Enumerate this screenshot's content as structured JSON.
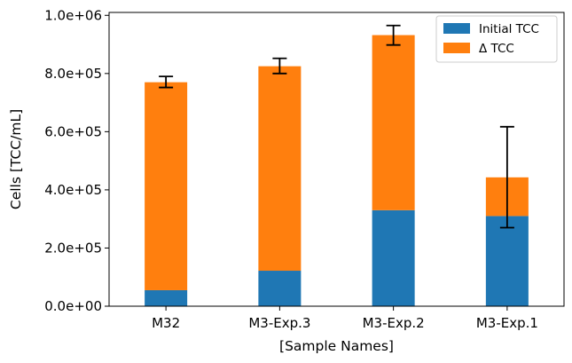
{
  "chart_data": {
    "type": "bar",
    "stacked": true,
    "categories": [
      "M32",
      "M3-Exp.3",
      "M3-Exp.2",
      "M3-Exp.1"
    ],
    "series": [
      {
        "name": "Initial TCC",
        "color": "#1f77b4",
        "values": [
          55000,
          122000,
          330000,
          310000
        ]
      },
      {
        "name": "Δ TCC",
        "color": "#ff7f0e",
        "values": [
          715000,
          703000,
          602000,
          133000
        ]
      }
    ],
    "error_bars": [
      {
        "center": 770000,
        "low": 752000,
        "high": 790000
      },
      {
        "center": 825000,
        "low": 800000,
        "high": 852000
      },
      {
        "center": 932000,
        "low": 898000,
        "high": 965000
      },
      {
        "center": 443000,
        "low": 270000,
        "high": 617000
      }
    ],
    "ylabel": "Cells [TCC/mL]",
    "xlabel": "[Sample Names]",
    "ylim": [
      0,
      1010000
    ],
    "yticks": [
      0,
      200000,
      400000,
      600000,
      800000,
      1000000
    ],
    "ytick_labels": [
      "0.0e+00",
      "2.0e+05",
      "4.0e+05",
      "6.0e+05",
      "8.0e+05",
      "1.0e+06"
    ],
    "grid": false,
    "legend_position": "top-right"
  }
}
